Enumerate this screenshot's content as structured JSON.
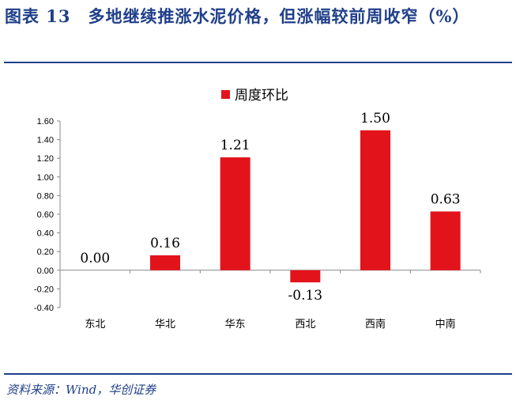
{
  "figure": {
    "title": "图表 13　多地继续推涨水泥价格，但涨幅较前周收窄（%）",
    "source": "资料来源：Wind，华创证券"
  },
  "colors": {
    "bar": "#e3131b",
    "title": "#1f3f8a"
  },
  "chart_data": {
    "type": "bar",
    "categories": [
      "东北",
      "华北",
      "华东",
      "西北",
      "西南",
      "中南"
    ],
    "series": [
      {
        "name": "周度环比",
        "values": [
          0.0,
          0.16,
          1.21,
          -0.13,
          1.5,
          0.63
        ]
      }
    ],
    "data_labels": [
      "0.00",
      "0.16",
      "1.21",
      "-0.13",
      "1.50",
      "0.63"
    ],
    "ylim": [
      -0.4,
      1.6
    ],
    "yticks": [
      "-0.40",
      "-0.20",
      "0.00",
      "0.20",
      "0.40",
      "0.60",
      "0.80",
      "1.00",
      "1.20",
      "1.40",
      "1.60"
    ],
    "ytick_values": [
      -0.4,
      -0.2,
      0,
      0.2,
      0.4,
      0.6,
      0.8,
      1.0,
      1.2,
      1.4,
      1.6
    ],
    "legend": "top-center",
    "grid": false
  }
}
